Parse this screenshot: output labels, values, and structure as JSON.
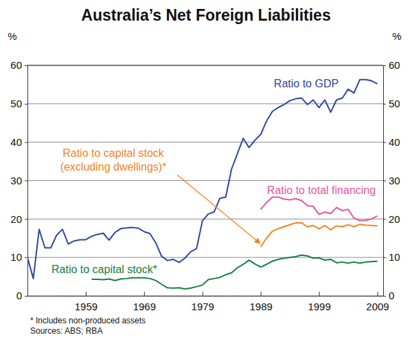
{
  "chart_data": {
    "type": "line",
    "title": "Australia’s Net Foreign Liabilities",
    "y_label": "%",
    "footnotes": [
      "* Includes non-produced assets",
      "Sources: ABS; RBA"
    ],
    "x": [
      1949,
      1950,
      1951,
      1952,
      1953,
      1954,
      1955,
      1956,
      1957,
      1958,
      1959,
      1960,
      1961,
      1962,
      1963,
      1964,
      1965,
      1966,
      1967,
      1968,
      1969,
      1970,
      1971,
      1972,
      1973,
      1974,
      1975,
      1976,
      1977,
      1978,
      1979,
      1980,
      1981,
      1982,
      1983,
      1984,
      1985,
      1986,
      1987,
      1988,
      1989,
      1990,
      1991,
      1992,
      1993,
      1994,
      1995,
      1996,
      1997,
      1998,
      1999,
      2000,
      2001,
      2002,
      2003,
      2004,
      2005,
      2006,
      2007,
      2008,
      2009
    ],
    "xlim": [
      1949,
      2010
    ],
    "xticks": [
      1959,
      1969,
      1979,
      1989,
      1999,
      2009
    ],
    "ylim": [
      0,
      60
    ],
    "yticks": [
      0,
      10,
      20,
      30,
      40,
      50,
      60
    ],
    "grid": true,
    "series": [
      {
        "name": "Ratio to GDP",
        "color": "#2f45a6",
        "values": [
          10,
          4.5,
          17.3,
          12.5,
          12.5,
          15.8,
          17.3,
          13.5,
          14.3,
          14.6,
          14.6,
          15.5,
          16,
          16.3,
          14.5,
          16.5,
          17.5,
          17.7,
          17.8,
          17.6,
          16.7,
          16.2,
          13.8,
          10.3,
          9.2,
          9.5,
          8.7,
          9.8,
          11.5,
          12.3,
          19.5,
          21.3,
          21.8,
          25.4,
          25.7,
          33,
          37,
          41,
          38.6,
          40.5,
          42,
          45.5,
          48,
          49,
          49.8,
          50.8,
          51.3,
          51.5,
          49.8,
          51,
          49,
          51,
          47.8,
          51,
          51.5,
          53.8,
          52.8,
          56.3,
          56.3,
          56.0,
          55.2
        ]
      },
      {
        "name": "Ratio to capital stock (excluding dwellings)*",
        "color": "#f58220",
        "values": [
          null,
          null,
          null,
          null,
          null,
          null,
          null,
          null,
          null,
          null,
          null,
          null,
          null,
          null,
          null,
          null,
          null,
          null,
          null,
          null,
          null,
          null,
          null,
          null,
          null,
          null,
          null,
          null,
          null,
          null,
          null,
          null,
          null,
          null,
          null,
          null,
          null,
          null,
          null,
          null,
          12.8,
          15,
          16.8,
          17.5,
          18,
          18.5,
          19,
          19,
          18,
          18.3,
          17.5,
          18.3,
          17.2,
          18.2,
          18,
          18.5,
          18,
          18.6,
          18.4,
          18.3,
          18.2
        ]
      },
      {
        "name": "Ratio to total financing",
        "color": "#e8559e",
        "values": [
          null,
          null,
          null,
          null,
          null,
          null,
          null,
          null,
          null,
          null,
          null,
          null,
          null,
          null,
          null,
          null,
          null,
          null,
          null,
          null,
          null,
          null,
          null,
          null,
          null,
          null,
          null,
          null,
          null,
          null,
          null,
          null,
          null,
          null,
          null,
          null,
          null,
          null,
          null,
          null,
          22.5,
          24.3,
          25.7,
          25.7,
          25.2,
          25.0,
          25.3,
          24.8,
          23.5,
          23.3,
          21.2,
          21.8,
          21.4,
          23.0,
          22.2,
          22.5,
          20.2,
          19.6,
          19.6,
          20.0,
          20.8
        ]
      },
      {
        "name": "Ratio to capital stock*",
        "color": "#13803f",
        "values": [
          null,
          null,
          null,
          null,
          null,
          null,
          null,
          null,
          null,
          null,
          null,
          4.3,
          4.3,
          4.2,
          4.4,
          4.0,
          4.4,
          4.5,
          4.7,
          4.7,
          4.7,
          4.5,
          4.0,
          3.0,
          2.1,
          2.0,
          2.1,
          1.8,
          2.0,
          2.4,
          2.8,
          4.2,
          4.5,
          4.8,
          5.5,
          6.0,
          7.3,
          8.2,
          9.3,
          8.3,
          7.5,
          8.2,
          9.0,
          9.5,
          9.8,
          10.0,
          10.2,
          10.6,
          10.4,
          9.8,
          9.9,
          9.3,
          9.5,
          8.6,
          8.8,
          8.5,
          8.8,
          8.5,
          8.8,
          8.9,
          9.0
        ]
      }
    ]
  }
}
